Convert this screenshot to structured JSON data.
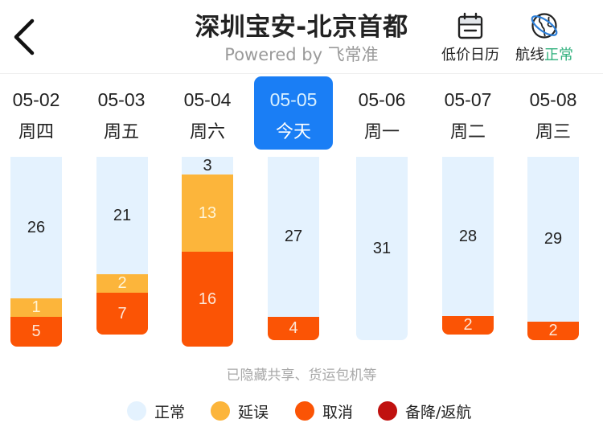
{
  "header": {
    "back_label": "返回",
    "title": "深圳宝安-北京首都",
    "subtitle": "Powered by 飞常准",
    "tools": [
      {
        "name": "calendar",
        "label": "低价日历",
        "icon": "calendar-icon"
      },
      {
        "name": "route",
        "label_prefix": "航线",
        "status": "正常",
        "icon": "globe-icon",
        "status_color": "#2fb07c"
      }
    ]
  },
  "dates": [
    {
      "date": "05-02",
      "weekday": "周四",
      "selected": false
    },
    {
      "date": "05-03",
      "weekday": "周五",
      "selected": false
    },
    {
      "date": "05-04",
      "weekday": "周六",
      "selected": false
    },
    {
      "date": "05-05",
      "weekday": "今天",
      "selected": true
    },
    {
      "date": "05-06",
      "weekday": "周一",
      "selected": false
    },
    {
      "date": "05-07",
      "weekday": "周二",
      "selected": false
    },
    {
      "date": "05-08",
      "weekday": "周三",
      "selected": false
    }
  ],
  "note": "已隐藏共享、货运包机等",
  "legend": [
    {
      "key": "normal",
      "label": "正常",
      "color": "#e4f2fe"
    },
    {
      "key": "delay",
      "label": "延误",
      "color": "#fcb53b"
    },
    {
      "key": "cancel",
      "label": "取消",
      "color": "#fb5405"
    },
    {
      "key": "divert",
      "label": "备降/返航",
      "color": "#c0110f"
    }
  ],
  "colors": {
    "accent": "#1a7ef5",
    "normal": "#e4f2fe",
    "delay": "#fcb53b",
    "cancel": "#fb5405",
    "divert": "#c0110f",
    "status_ok": "#2fb07c"
  },
  "chart_data": {
    "type": "bar",
    "stacked": true,
    "title": "深圳宝安-北京首都",
    "categories": [
      "05-02 周四",
      "05-03 周五",
      "05-04 周六",
      "05-05 今天",
      "05-06 周一",
      "05-07 周二",
      "05-08 周三"
    ],
    "series": [
      {
        "name": "正常",
        "key": "normal",
        "values": [
          26,
          21,
          3,
          27,
          31,
          28,
          29
        ]
      },
      {
        "name": "延误",
        "key": "delay",
        "values": [
          1,
          2,
          13,
          0,
          0,
          0,
          0
        ]
      },
      {
        "name": "取消",
        "key": "cancel",
        "values": [
          5,
          7,
          16,
          4,
          0,
          2,
          2
        ]
      },
      {
        "name": "备降/返航",
        "key": "divert",
        "values": [
          0,
          0,
          0,
          0,
          0,
          0,
          0
        ]
      }
    ],
    "xlabel": "",
    "ylabel": "",
    "grid": false,
    "legend_position": "bottom",
    "annotations": [
      "已隐藏共享、货运包机等"
    ]
  }
}
